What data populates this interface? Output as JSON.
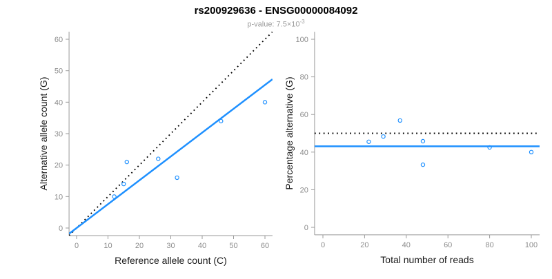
{
  "header": {
    "title": "rs200929636 - ENSG00000084092",
    "subtitle_base": "p-value: 7.5×10",
    "subtitle_exponent": "-3"
  },
  "colors": {
    "accent_blue": "#1E90FF",
    "reference_black": "#000000",
    "tick_label_gray": "#8c8c8c",
    "axis_gray": "#999999",
    "axis_title_black": "#1a1a1a"
  },
  "chart_data": {
    "figure_title": "rs200929636 - ENSG00000084092",
    "figure_subtitle": "p-value: 7.5×10^-3",
    "plots": [
      {
        "type": "scatter",
        "xlabel": "Reference allele count (C)",
        "ylabel": "Alternative allele count (G)",
        "xlim": [
          0,
          60
        ],
        "ylim": [
          0,
          60
        ],
        "xticks": [
          0,
          10,
          20,
          30,
          40,
          50,
          60
        ],
        "yticks": [
          0,
          10,
          20,
          30,
          40,
          50,
          60
        ],
        "grid": false,
        "marker": "open-circle",
        "point_color": "#1E90FF",
        "points": [
          [
            12,
            10
          ],
          [
            15,
            14
          ],
          [
            16,
            21
          ],
          [
            26,
            22
          ],
          [
            32,
            16
          ],
          [
            46,
            34
          ],
          [
            60,
            40
          ]
        ],
        "lines": [
          {
            "name": "identity-line",
            "style": "dotted",
            "color": "#000000",
            "slope": 1,
            "intercept": 0
          },
          {
            "name": "fit-line",
            "style": "solid",
            "color": "#1E90FF",
            "slope": 0.758,
            "intercept": 0
          }
        ]
      },
      {
        "type": "scatter",
        "xlabel": "Total number of reads",
        "ylabel": "Percentage alternative (G)",
        "xlim": [
          0,
          100
        ],
        "ylim": [
          0,
          100
        ],
        "xticks": [
          0,
          20,
          40,
          60,
          80,
          100
        ],
        "yticks": [
          0,
          20,
          40,
          60,
          80,
          100
        ],
        "grid": false,
        "marker": "open-circle",
        "point_color": "#1E90FF",
        "points": [
          [
            22,
            45.5
          ],
          [
            29,
            48.3
          ],
          [
            37,
            56.8
          ],
          [
            48,
            45.8
          ],
          [
            48,
            33.3
          ],
          [
            80,
            42.5
          ],
          [
            100,
            40
          ]
        ],
        "lines": [
          {
            "name": "expected-50pct-line",
            "style": "dotted",
            "color": "#000000",
            "slope": 0,
            "intercept": 50
          },
          {
            "name": "mean-pct-line",
            "style": "solid",
            "color": "#1E90FF",
            "slope": 0,
            "intercept": 43.1
          }
        ]
      }
    ]
  }
}
